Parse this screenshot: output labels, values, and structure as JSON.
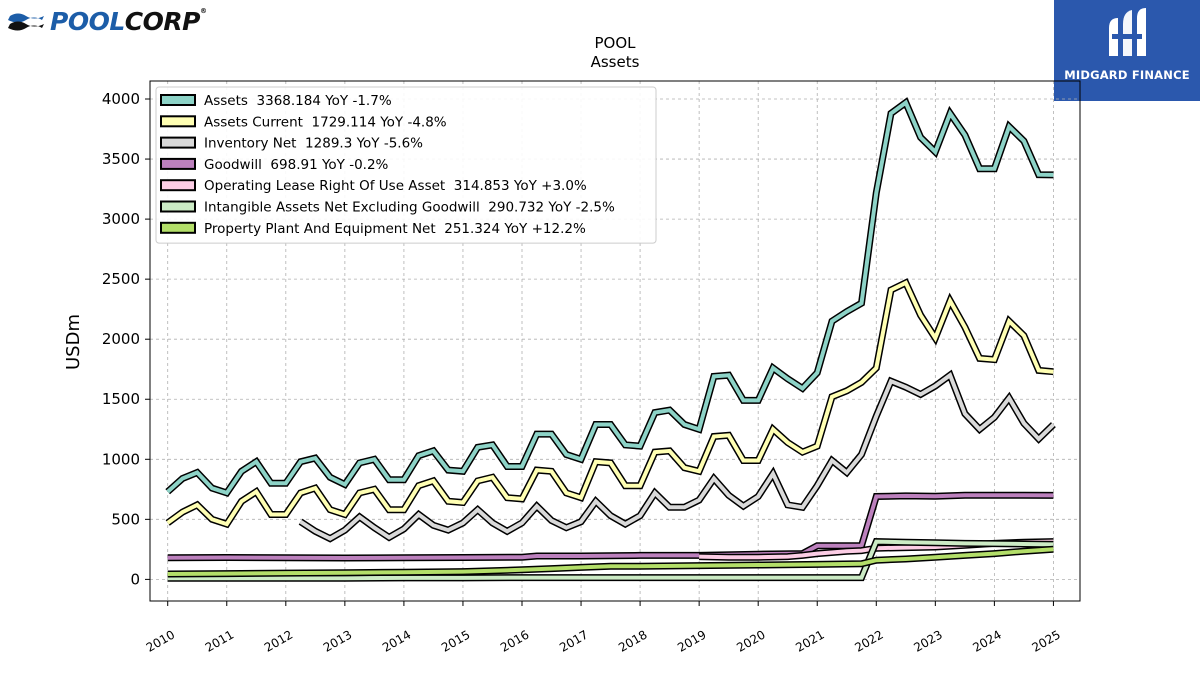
{
  "header": {
    "company_logo": {
      "brand_primary": "POOL",
      "brand_secondary": "CORP",
      "registered_mark": "®",
      "color": "#1c5da8"
    },
    "watermark": {
      "label": "MIDGARD FINANCE",
      "background": "#2b58ad"
    }
  },
  "chart_data": {
    "type": "line",
    "title": "POOL",
    "subtitle": "Assets",
    "xlabel": "",
    "ylabel": "USDm",
    "xlim": [
      2009.7,
      2025.45
    ],
    "ylim": [
      -180,
      4150
    ],
    "yticks": [
      0,
      500,
      1000,
      1500,
      2000,
      2500,
      3000,
      3500,
      4000
    ],
    "xticks": [
      "2010",
      "2011",
      "2012",
      "2013",
      "2014",
      "2015",
      "2016",
      "2017",
      "2018",
      "2019",
      "2020",
      "2021",
      "2022",
      "2023",
      "2024",
      "2025"
    ],
    "grid": true,
    "legend_position": "upper-left",
    "series": [
      {
        "name": "Assets",
        "legend": "Assets  3368.184 YoY -1.7%",
        "color": "#8dd3c7",
        "x": [
          2010.0,
          2010.25,
          2010.5,
          2010.75,
          2011.0,
          2011.25,
          2011.5,
          2011.75,
          2012.0,
          2012.25,
          2012.5,
          2012.75,
          2013.0,
          2013.25,
          2013.5,
          2013.75,
          2014.0,
          2014.25,
          2014.5,
          2014.75,
          2015.0,
          2015.25,
          2015.5,
          2015.75,
          2016.0,
          2016.25,
          2016.5,
          2016.75,
          2017.0,
          2017.25,
          2017.5,
          2017.75,
          2018.0,
          2018.25,
          2018.5,
          2018.75,
          2019.0,
          2019.25,
          2019.5,
          2019.75,
          2020.0,
          2020.25,
          2020.5,
          2020.75,
          2021.0,
          2021.25,
          2021.5,
          2021.75,
          2022.0,
          2022.25,
          2022.5,
          2022.75,
          2023.0,
          2023.25,
          2023.5,
          2023.75,
          2024.0,
          2024.25,
          2024.5,
          2024.75,
          2025.0
        ],
        "values": [
          730,
          840,
          890,
          760,
          720,
          900,
          980,
          800,
          800,
          980,
          1010,
          850,
          790,
          970,
          1000,
          830,
          830,
          1030,
          1070,
          910,
          900,
          1100,
          1120,
          940,
          940,
          1210,
          1210,
          1040,
          1000,
          1290,
          1290,
          1120,
          1110,
          1390,
          1410,
          1290,
          1250,
          1690,
          1700,
          1490,
          1490,
          1760,
          1670,
          1590,
          1720,
          2150,
          2230,
          2300,
          3220,
          3880,
          3970,
          3680,
          3560,
          3880,
          3700,
          3420,
          3420,
          3770,
          3650,
          3370,
          3368
        ]
      },
      {
        "name": "Assets Current",
        "legend": "Assets Current  1729.114 YoY -4.8%",
        "color": "#ffffb3",
        "x": [
          2010.0,
          2010.25,
          2010.5,
          2010.75,
          2011.0,
          2011.25,
          2011.5,
          2011.75,
          2012.0,
          2012.25,
          2012.5,
          2012.75,
          2013.0,
          2013.25,
          2013.5,
          2013.75,
          2014.0,
          2014.25,
          2014.5,
          2014.75,
          2015.0,
          2015.25,
          2015.5,
          2015.75,
          2016.0,
          2016.25,
          2016.5,
          2016.75,
          2017.0,
          2017.25,
          2017.5,
          2017.75,
          2018.0,
          2018.25,
          2018.5,
          2018.75,
          2019.0,
          2019.25,
          2019.5,
          2019.75,
          2020.0,
          2020.25,
          2020.5,
          2020.75,
          2021.0,
          2021.25,
          2021.5,
          2021.75,
          2022.0,
          2022.25,
          2022.5,
          2022.75,
          2023.0,
          2023.25,
          2023.5,
          2023.75,
          2024.0,
          2024.25,
          2024.5,
          2024.75,
          2025.0
        ],
        "values": [
          470,
          560,
          620,
          500,
          460,
          650,
          730,
          540,
          540,
          720,
          760,
          580,
          540,
          720,
          750,
          580,
          580,
          780,
          820,
          650,
          640,
          820,
          850,
          680,
          670,
          910,
          900,
          720,
          680,
          980,
          970,
          780,
          780,
          1060,
          1070,
          930,
          900,
          1190,
          1200,
          990,
          990,
          1250,
          1140,
          1060,
          1110,
          1520,
          1570,
          1640,
          1760,
          2410,
          2470,
          2200,
          2010,
          2320,
          2100,
          1840,
          1830,
          2150,
          2030,
          1740,
          1729
        ]
      },
      {
        "name": "Inventory Net",
        "legend": "Inventory Net  1289.3 YoY -5.6%",
        "color": "#d9d9d9",
        "x": [
          2012.25,
          2012.5,
          2012.75,
          2013.0,
          2013.25,
          2013.5,
          2013.75,
          2014.0,
          2014.25,
          2014.5,
          2014.75,
          2015.0,
          2015.25,
          2015.5,
          2015.75,
          2016.0,
          2016.25,
          2016.5,
          2016.75,
          2017.0,
          2017.25,
          2017.5,
          2017.75,
          2018.0,
          2018.25,
          2018.5,
          2018.75,
          2019.0,
          2019.25,
          2019.5,
          2019.75,
          2020.0,
          2020.25,
          2020.5,
          2020.75,
          2021.0,
          2021.25,
          2021.5,
          2021.75,
          2022.0,
          2022.25,
          2022.5,
          2022.75,
          2023.0,
          2023.25,
          2023.5,
          2023.75,
          2024.0,
          2024.25,
          2024.5,
          2024.75,
          2025.0
        ],
        "values": [
          480,
          400,
          340,
          410,
          520,
          430,
          350,
          420,
          540,
          450,
          410,
          470,
          580,
          470,
          400,
          470,
          610,
          490,
          430,
          480,
          650,
          530,
          460,
          530,
          720,
          600,
          600,
          660,
          840,
          700,
          610,
          690,
          880,
          620,
          600,
          780,
          990,
          890,
          1040,
          1360,
          1650,
          1600,
          1540,
          1610,
          1700,
          1380,
          1250,
          1350,
          1510,
          1300,
          1170,
          1289
        ]
      },
      {
        "name": "Goodwill",
        "legend": "Goodwill  698.91 YoY -0.2%",
        "color": "#bc80bd",
        "x": [
          2010.0,
          2011.0,
          2012.0,
          2013.0,
          2014.0,
          2015.0,
          2016.0,
          2016.25,
          2017.0,
          2018.0,
          2019.0,
          2020.0,
          2020.75,
          2021.0,
          2021.5,
          2021.75,
          2022.0,
          2022.5,
          2023.0,
          2023.5,
          2024.0,
          2024.5,
          2025.0
        ],
        "values": [
          180,
          182,
          180,
          178,
          180,
          182,
          185,
          195,
          195,
          200,
          200,
          210,
          215,
          280,
          280,
          280,
          690,
          695,
          693,
          700,
          700,
          700,
          699
        ]
      },
      {
        "name": "Operating Lease Right Of Use Asset",
        "legend": "Operating Lease Right Of Use Asset  314.853 YoY +3.0%",
        "color": "#fccde5",
        "x": [
          2019.0,
          2019.5,
          2020.0,
          2020.5,
          2020.75,
          2021.0,
          2021.5,
          2021.75,
          2022.0,
          2022.5,
          2023.0,
          2023.5,
          2024.0,
          2024.5,
          2025.0
        ],
        "values": [
          190,
          185,
          185,
          190,
          200,
          215,
          235,
          240,
          260,
          265,
          270,
          285,
          300,
          310,
          315
        ]
      },
      {
        "name": "Intangible Assets Net Excluding Goodwill",
        "legend": "Intangible Assets Net Excluding Goodwill  290.732 YoY -2.5%",
        "color": "#ccebc5",
        "x": [
          2010.0,
          2011.0,
          2012.0,
          2013.0,
          2014.0,
          2015.0,
          2016.0,
          2017.0,
          2018.0,
          2019.0,
          2020.0,
          2021.0,
          2021.75,
          2022.0,
          2022.5,
          2023.0,
          2023.5,
          2024.0,
          2024.5,
          2025.0
        ],
        "values": [
          10,
          10,
          10,
          10,
          12,
          12,
          15,
          15,
          15,
          15,
          15,
          15,
          15,
          315,
          310,
          305,
          300,
          298,
          295,
          291
        ]
      },
      {
        "name": "Property Plant And Equipment Net",
        "legend": "Property Plant And Equipment Net  251.324 YoY +12.2%",
        "color": "#b3de69",
        "x": [
          2010.0,
          2011.0,
          2012.0,
          2013.0,
          2014.0,
          2015.0,
          2016.0,
          2016.5,
          2017.0,
          2017.5,
          2018.0,
          2019.0,
          2020.0,
          2021.0,
          2021.75,
          2022.0,
          2022.5,
          2023.0,
          2023.5,
          2024.0,
          2024.5,
          2025.0
        ],
        "values": [
          45,
          48,
          52,
          55,
          60,
          65,
          80,
          90,
          100,
          110,
          110,
          115,
          120,
          125,
          130,
          160,
          170,
          185,
          200,
          215,
          235,
          251
        ]
      }
    ]
  }
}
